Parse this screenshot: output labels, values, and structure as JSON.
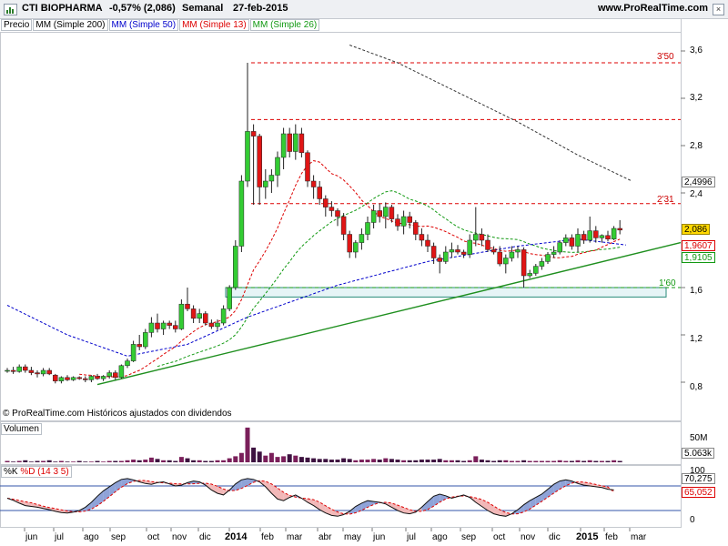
{
  "header": {
    "symbol": "CTI BIOPHARMA",
    "change": "-0,57% (2,086)",
    "period": "Semanal",
    "date": "27-feb-2015",
    "site": "www.ProRealTime.com"
  },
  "legend": [
    {
      "label": "Precio",
      "color": "#000000"
    },
    {
      "label": "MM (Simple 200)",
      "color": "#000000"
    },
    {
      "label": "MM (Simple 50)",
      "color": "#0000cc"
    },
    {
      "label": "MM (Simple 13)",
      "color": "#dd0000"
    },
    {
      "label": "MM (Simple 26)",
      "color": "#119911"
    }
  ],
  "copyright": "© ProRealTime.com Históricos ajustados con dividendos",
  "price_axis": [
    "3,6",
    "3,2",
    "2,8",
    "2,4",
    "1,6",
    "1,2",
    "0,8"
  ],
  "price_tags": [
    {
      "value": "2,4996",
      "bg": "#ffffff",
      "color": "#000000",
      "border": "#888888"
    },
    {
      "value": "2,086",
      "bg": "#ffd800",
      "color": "#000000",
      "border": "#9a8400"
    },
    {
      "value": "1,9607",
      "bg": "#ffffff",
      "color": "#dd0000",
      "border": "#dd0000"
    },
    {
      "value": "1,9105",
      "bg": "#ffffff",
      "color": "#119911",
      "border": "#119911"
    }
  ],
  "level_labels": [
    "3'50",
    "2'31",
    "1'60"
  ],
  "volume": {
    "label": "Volumen",
    "axis": "50M",
    "tag": "5.063k"
  },
  "stochastic": {
    "k_label": "%K",
    "d_label": "%D (14 3 5)",
    "axis": [
      "100",
      "0"
    ],
    "tag_k": "70,275",
    "tag_d": "65,052"
  },
  "months": [
    "jun",
    "jul",
    "ago",
    "sep",
    "oct",
    "nov",
    "dic",
    "2014",
    "feb",
    "mar",
    "abr",
    "may",
    "jun",
    "jul",
    "ago",
    "sep",
    "oct",
    "nov",
    "dic",
    "2015",
    "feb",
    "mar"
  ],
  "chart_data": {
    "type": "candlestick",
    "title": "CTI BIOPHARMA",
    "period": "Semanal",
    "ylim": [
      0.6,
      3.7
    ],
    "series": [
      {
        "name": "Precio",
        "ohlc": [
          [
            0.9,
            0.92,
            0.88,
            0.9
          ],
          [
            0.9,
            0.93,
            0.87,
            0.89
          ],
          [
            0.89,
            0.95,
            0.88,
            0.93
          ],
          [
            0.93,
            0.95,
            0.88,
            0.9
          ],
          [
            0.9,
            0.93,
            0.86,
            0.88
          ],
          [
            0.88,
            0.9,
            0.84,
            0.87
          ],
          [
            0.87,
            0.92,
            0.85,
            0.9
          ],
          [
            0.9,
            0.92,
            0.86,
            0.87
          ],
          [
            0.86,
            0.87,
            0.79,
            0.81
          ],
          [
            0.81,
            0.85,
            0.79,
            0.84
          ],
          [
            0.84,
            0.86,
            0.81,
            0.82
          ],
          [
            0.82,
            0.85,
            0.81,
            0.84
          ],
          [
            0.84,
            0.85,
            0.82,
            0.83
          ],
          [
            0.83,
            0.85,
            0.8,
            0.82
          ],
          [
            0.82,
            0.86,
            0.8,
            0.85
          ],
          [
            0.85,
            0.87,
            0.82,
            0.83
          ],
          [
            0.83,
            0.86,
            0.81,
            0.85
          ],
          [
            0.85,
            0.9,
            0.83,
            0.88
          ],
          [
            0.88,
            0.9,
            0.82,
            0.84
          ],
          [
            0.84,
            0.95,
            0.83,
            0.94
          ],
          [
            0.94,
            1.0,
            0.92,
            0.98
          ],
          [
            0.98,
            1.15,
            0.97,
            1.12
          ],
          [
            1.12,
            1.2,
            1.07,
            1.1
          ],
          [
            1.1,
            1.25,
            1.08,
            1.22
          ],
          [
            1.22,
            1.35,
            1.18,
            1.3
          ],
          [
            1.3,
            1.38,
            1.22,
            1.25
          ],
          [
            1.25,
            1.32,
            1.2,
            1.3
          ],
          [
            1.3,
            1.32,
            1.25,
            1.28
          ],
          [
            1.28,
            1.32,
            1.22,
            1.25
          ],
          [
            1.25,
            1.5,
            1.24,
            1.46
          ],
          [
            1.46,
            1.6,
            1.4,
            1.42
          ],
          [
            1.42,
            1.45,
            1.3,
            1.34
          ],
          [
            1.34,
            1.42,
            1.3,
            1.38
          ],
          [
            1.38,
            1.4,
            1.28,
            1.3
          ],
          [
            1.3,
            1.33,
            1.25,
            1.27
          ],
          [
            1.27,
            1.33,
            1.24,
            1.3
          ],
          [
            1.3,
            1.45,
            1.28,
            1.42
          ],
          [
            1.42,
            1.62,
            1.4,
            1.6
          ],
          [
            1.6,
            2.0,
            1.58,
            1.95
          ],
          [
            1.95,
            2.55,
            1.9,
            2.5
          ],
          [
            2.5,
            3.5,
            2.45,
            2.92
          ],
          [
            2.92,
            2.98,
            2.3,
            2.88
          ],
          [
            2.88,
            2.9,
            2.3,
            2.45
          ],
          [
            2.45,
            2.6,
            2.35,
            2.5
          ],
          [
            2.5,
            2.6,
            2.4,
            2.55
          ],
          [
            2.55,
            2.75,
            2.45,
            2.7
          ],
          [
            2.7,
            2.95,
            2.6,
            2.9
          ],
          [
            2.9,
            2.95,
            2.7,
            2.75
          ],
          [
            2.75,
            2.98,
            2.68,
            2.9
          ],
          [
            2.9,
            2.95,
            2.7,
            2.74
          ],
          [
            2.74,
            2.76,
            2.45,
            2.5
          ],
          [
            2.5,
            2.55,
            2.35,
            2.45
          ],
          [
            2.45,
            2.5,
            2.3,
            2.35
          ],
          [
            2.35,
            2.38,
            2.2,
            2.28
          ],
          [
            2.28,
            2.33,
            2.2,
            2.25
          ],
          [
            2.25,
            2.27,
            2.12,
            2.2
          ],
          [
            2.2,
            2.23,
            2.0,
            2.05
          ],
          [
            2.05,
            2.08,
            1.85,
            1.9
          ],
          [
            1.9,
            2.0,
            1.85,
            1.98
          ],
          [
            1.98,
            2.1,
            1.92,
            2.05
          ],
          [
            2.05,
            2.2,
            2.0,
            2.15
          ],
          [
            2.15,
            2.3,
            2.1,
            2.25
          ],
          [
            2.25,
            2.31,
            2.15,
            2.2
          ],
          [
            2.2,
            2.32,
            2.1,
            2.28
          ],
          [
            2.28,
            2.3,
            2.15,
            2.18
          ],
          [
            2.18,
            2.22,
            2.08,
            2.12
          ],
          [
            2.12,
            2.25,
            2.05,
            2.2
          ],
          [
            2.2,
            2.24,
            2.1,
            2.15
          ],
          [
            2.15,
            2.17,
            2.0,
            2.05
          ],
          [
            2.05,
            2.1,
            1.95,
            2.0
          ],
          [
            2.0,
            2.05,
            1.9,
            1.95
          ],
          [
            1.95,
            1.98,
            1.8,
            1.85
          ],
          [
            1.85,
            1.88,
            1.72,
            1.82
          ],
          [
            1.82,
            1.95,
            1.8,
            1.9
          ],
          [
            1.9,
            1.98,
            1.85,
            1.92
          ],
          [
            1.92,
            1.96,
            1.88,
            1.9
          ],
          [
            1.9,
            1.92,
            1.85,
            1.88
          ],
          [
            1.88,
            2.05,
            1.85,
            2.0
          ],
          [
            2.0,
            2.28,
            1.95,
            2.05
          ],
          [
            2.05,
            2.1,
            1.95,
            2.0
          ],
          [
            2.0,
            2.05,
            1.9,
            1.92
          ],
          [
            1.92,
            1.95,
            1.88,
            1.9
          ],
          [
            1.9,
            1.95,
            1.78,
            1.8
          ],
          [
            1.8,
            1.88,
            1.72,
            1.85
          ],
          [
            1.85,
            1.95,
            1.82,
            1.9
          ],
          [
            1.9,
            1.95,
            1.85,
            1.92
          ],
          [
            1.92,
            1.94,
            1.6,
            1.7
          ],
          [
            1.7,
            1.75,
            1.68,
            1.72
          ],
          [
            1.72,
            1.8,
            1.7,
            1.78
          ],
          [
            1.78,
            1.85,
            1.75,
            1.82
          ],
          [
            1.82,
            1.9,
            1.8,
            1.88
          ],
          [
            1.88,
            1.95,
            1.85,
            1.9
          ],
          [
            1.9,
            2.0,
            1.88,
            1.98
          ],
          [
            1.98,
            2.05,
            1.95,
            2.02
          ],
          [
            2.02,
            2.05,
            1.92,
            1.95
          ],
          [
            1.95,
            2.1,
            1.9,
            2.05
          ],
          [
            2.05,
            2.08,
            1.97,
            2.0
          ],
          [
            2.0,
            2.2,
            1.98,
            2.08
          ],
          [
            2.08,
            2.12,
            1.98,
            2.02
          ],
          [
            2.02,
            2.05,
            1.98,
            2.04
          ],
          [
            2.04,
            2.08,
            1.99,
            2.01
          ],
          [
            2.01,
            2.12,
            2.0,
            2.1
          ],
          [
            2.1,
            2.17,
            2.05,
            2.086
          ]
        ]
      }
    ],
    "moving_averages": {
      "MM (Simple 200)": {
        "color": "#333333",
        "style": "dashed"
      },
      "MM (Simple 50)": {
        "color": "#0000cc",
        "style": "dashed"
      },
      "MM (Simple 13)": {
        "color": "#dd0000",
        "style": "dashed"
      },
      "MM (Simple 26)": {
        "color": "#119911",
        "style": "dashed"
      }
    },
    "horizontal_levels": [
      3.5,
      3.02,
      2.31,
      1.6
    ],
    "support_zone": [
      1.52,
      1.6
    ],
    "trendlines": [
      {
        "from": [
          0.78,
          0.78
        ],
        "to": [
          1.92,
          1.92
        ]
      }
    ],
    "last_value": 2.086,
    "volume_ylim": [
      0,
      60
    ],
    "volume_values": [
      2,
      1,
      2,
      3,
      1,
      2,
      2,
      3,
      1,
      2,
      1,
      1,
      2,
      1,
      1,
      2,
      1,
      2,
      2,
      2,
      3,
      4,
      3,
      4,
      7,
      5,
      3,
      3,
      2,
      8,
      6,
      3,
      3,
      2,
      2,
      3,
      3,
      6,
      9,
      14,
      52,
      22,
      16,
      10,
      14,
      8,
      9,
      12,
      10,
      8,
      7,
      6,
      5,
      5,
      4,
      4,
      6,
      5,
      3,
      4,
      4,
      5,
      4,
      6,
      5,
      4,
      3,
      3,
      3,
      4,
      4,
      4,
      5,
      3,
      3,
      3,
      2,
      3,
      9,
      4,
      3,
      2,
      3,
      3,
      2,
      2,
      3,
      2,
      2,
      2,
      2,
      2,
      3,
      2,
      2,
      3,
      2,
      3,
      2,
      2,
      2,
      3,
      2
    ],
    "stochastic_ylim": [
      0,
      100
    ],
    "stochastic_k_endpoint": 70.275,
    "stochastic_d_endpoint": 65.052
  }
}
